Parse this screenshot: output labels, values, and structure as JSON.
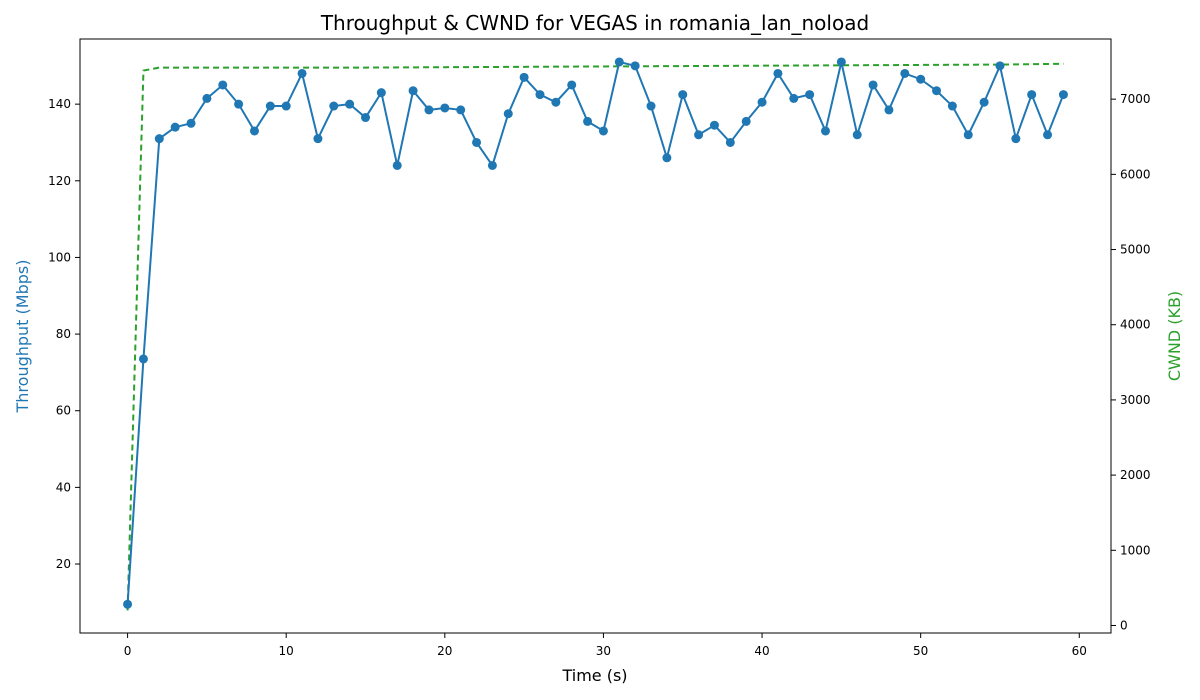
{
  "chart_data": {
    "type": "line",
    "title": "Throughput & CWND for VEGAS in romania_lan_noload",
    "xlabel": "Time (s)",
    "ylabel_left": "Throughput (Mbps)",
    "ylabel_right": "CWND (KB)",
    "xlim": [
      -3,
      62
    ],
    "ylim_left": [
      2,
      157
    ],
    "ylim_right": [
      -100,
      7800
    ],
    "x_ticks": [
      0,
      10,
      20,
      30,
      40,
      50,
      60
    ],
    "y_left_ticks": [
      20,
      40,
      60,
      80,
      100,
      120,
      140
    ],
    "y_right_ticks": [
      0,
      1000,
      2000,
      3000,
      4000,
      5000,
      6000,
      7000
    ],
    "grid": false,
    "colors": {
      "throughput": "#1f77b4",
      "cwnd": "#2ca02c"
    },
    "series": [
      {
        "key": "throughput",
        "axis": "left",
        "style": "solid-with-markers",
        "x": [
          0,
          1,
          2,
          3,
          4,
          5,
          6,
          7,
          8,
          9,
          10,
          11,
          12,
          13,
          14,
          15,
          16,
          17,
          18,
          19,
          20,
          21,
          22,
          23,
          24,
          25,
          26,
          27,
          28,
          29,
          30,
          31,
          32,
          33,
          34,
          35,
          36,
          37,
          38,
          39,
          40,
          41,
          42,
          43,
          44,
          45,
          46,
          47,
          48,
          49,
          50,
          51,
          52,
          53,
          54,
          55,
          56,
          57,
          58,
          59
        ],
        "values": [
          9.5,
          73.5,
          131,
          134,
          135,
          141.5,
          145,
          140,
          133,
          139.5,
          139.5,
          148,
          131,
          139.5,
          140,
          136.5,
          143,
          124,
          143.5,
          138.5,
          139,
          138.5,
          130,
          124,
          137.5,
          147,
          142.5,
          140.5,
          145,
          135.5,
          133,
          151,
          150,
          139.5,
          126,
          142.5,
          132,
          134.5,
          130,
          135.5,
          140.5,
          148,
          141.5,
          142.5,
          133,
          151,
          132,
          145,
          138.5,
          148,
          146.5,
          143.5,
          139.5,
          132,
          140.5,
          150,
          131,
          142.5,
          132,
          142.5
        ]
      },
      {
        "key": "cwnd",
        "axis": "right",
        "style": "dashed",
        "x": [
          0,
          1,
          2,
          5,
          10,
          15,
          20,
          25,
          30,
          35,
          40,
          45,
          50,
          55,
          59
        ],
        "values": [
          200,
          7380,
          7420,
          7420,
          7420,
          7420,
          7425,
          7430,
          7435,
          7440,
          7445,
          7450,
          7455,
          7460,
          7470
        ]
      }
    ]
  }
}
